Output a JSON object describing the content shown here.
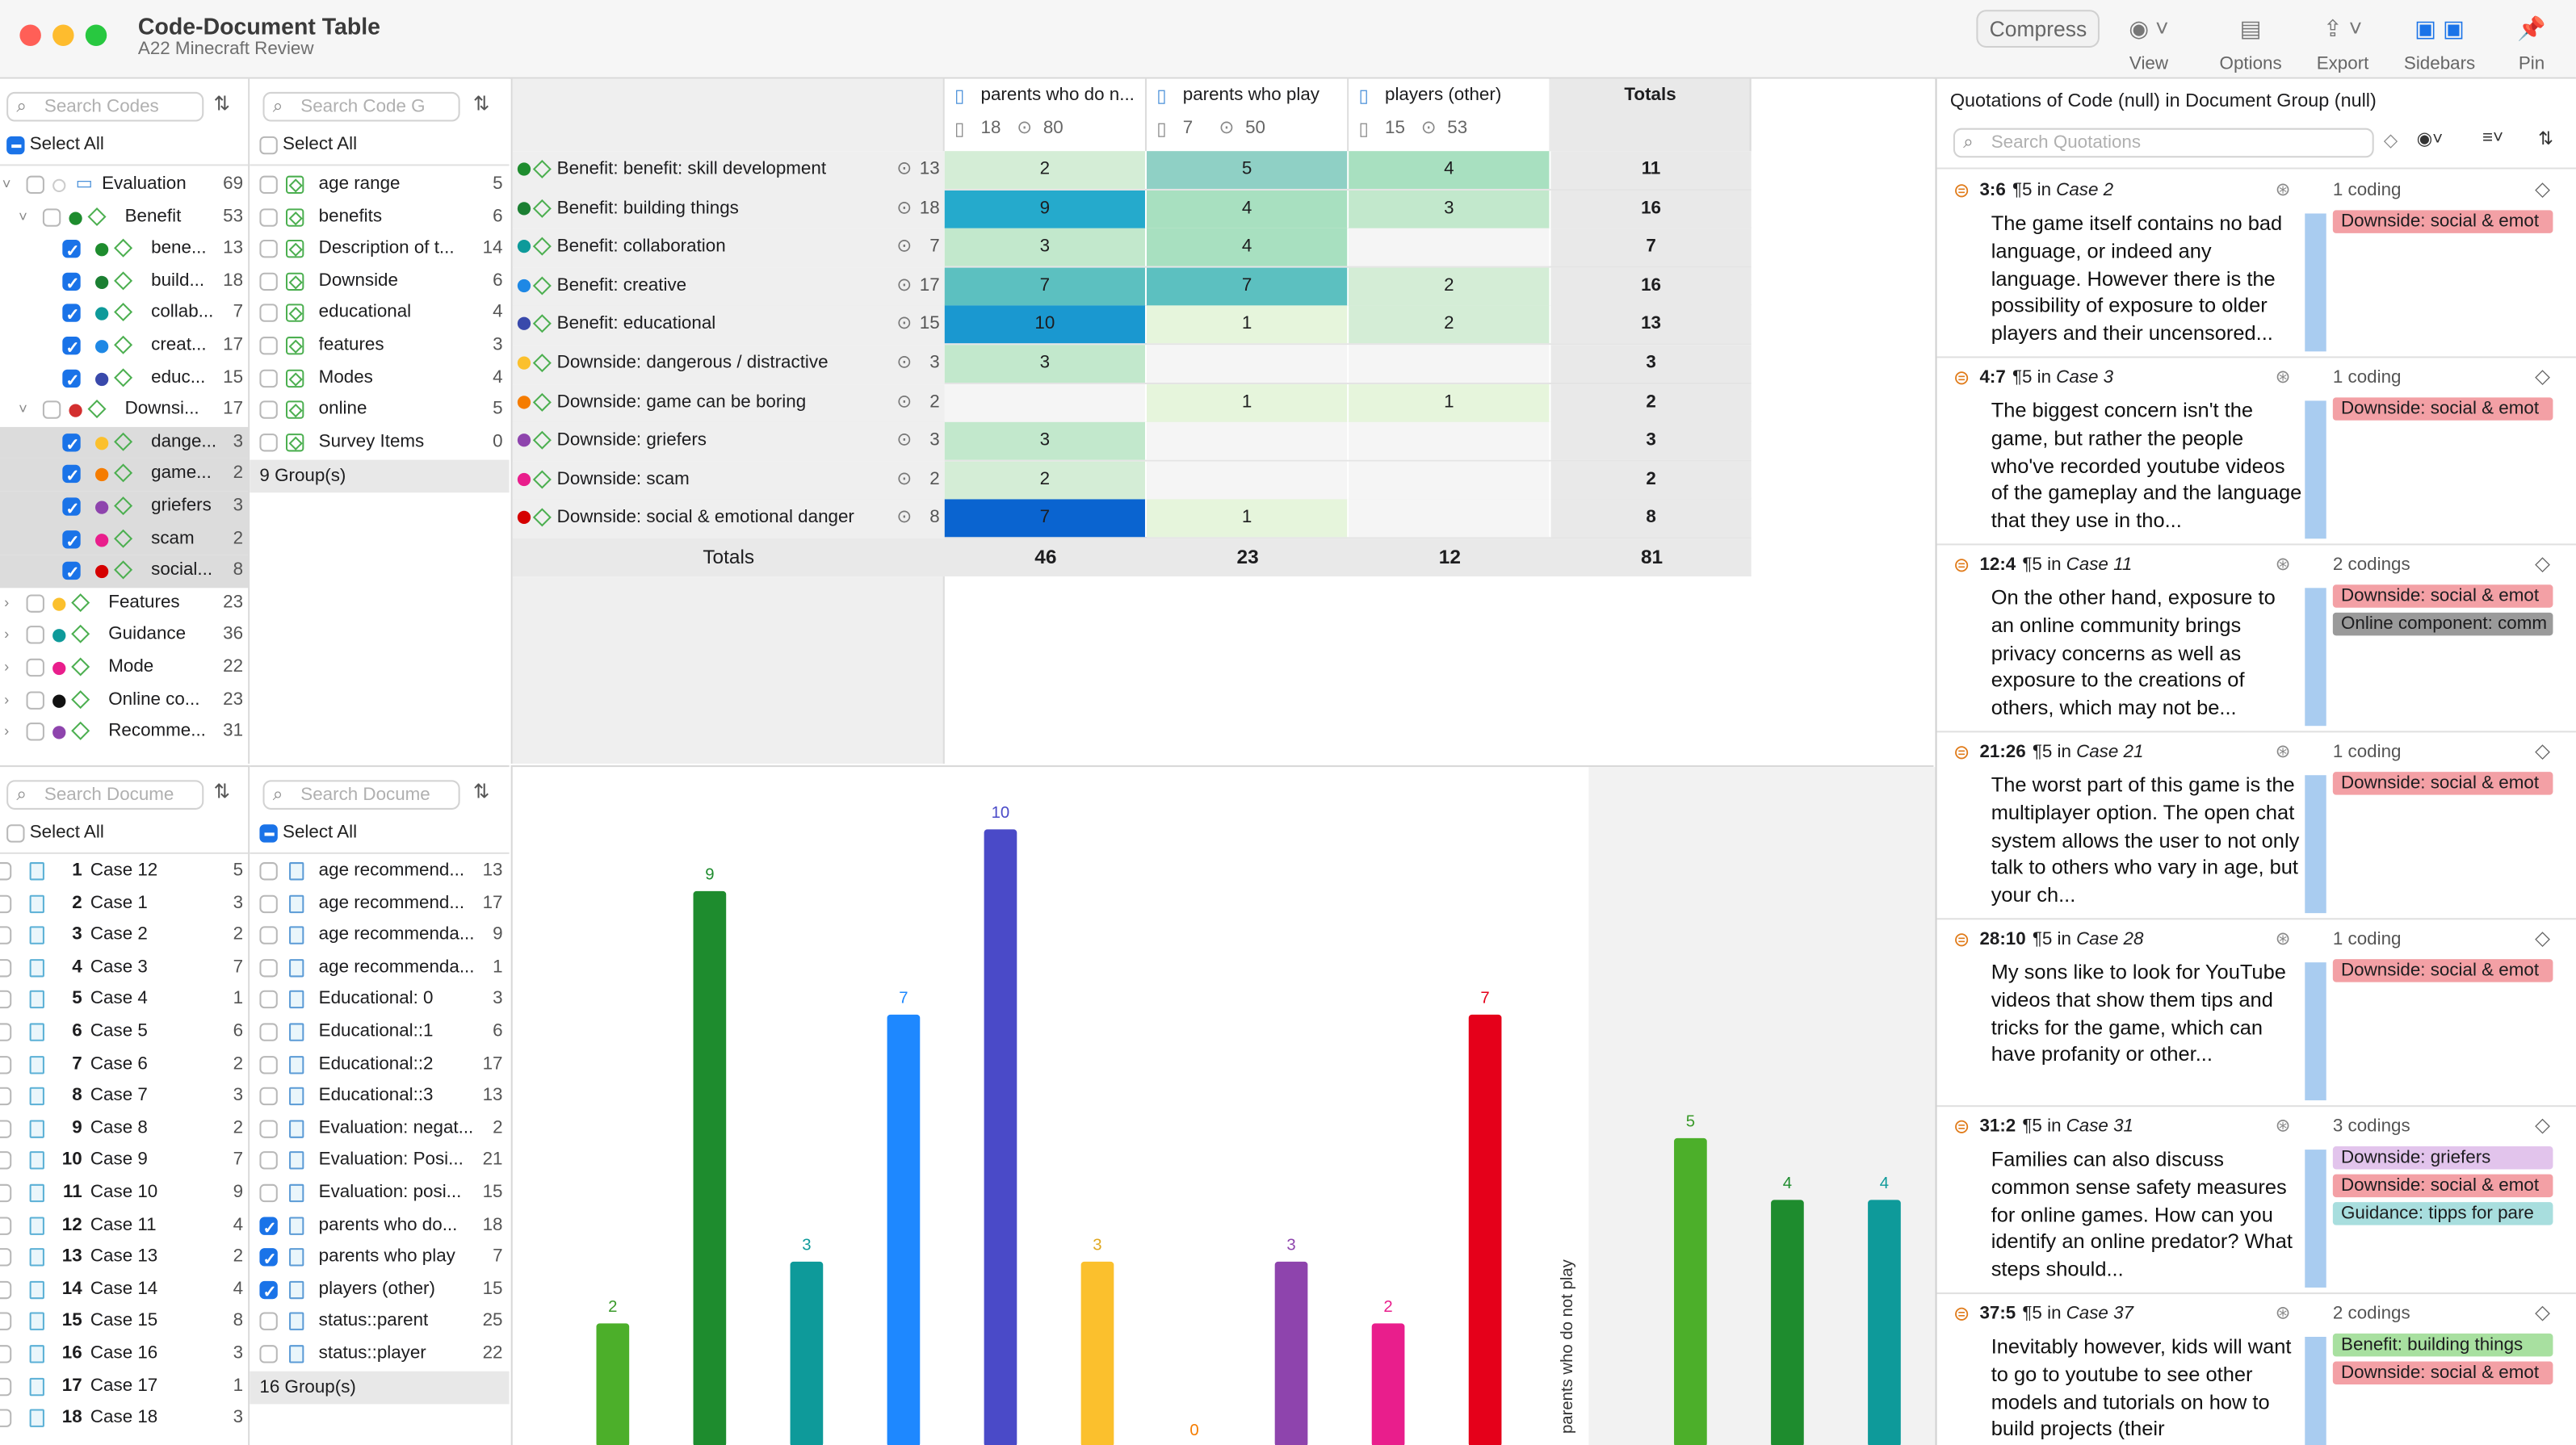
{
  "window": {
    "title": "Code-Document Table",
    "subtitle": "A22 Minecraft Review"
  },
  "toolbar": {
    "compress": "Compress",
    "items": [
      {
        "label": "View",
        "icon": "eye-icon"
      },
      {
        "label": "Options",
        "icon": "options-icon"
      },
      {
        "label": "Export",
        "icon": "export-icon"
      },
      {
        "label": "Sidebars",
        "icon": "sidebars-icon"
      },
      {
        "label": "Pin",
        "icon": "pin-icon"
      }
    ]
  },
  "codes_pane": {
    "search_placeholder": "Search Codes",
    "select_all": "Select All",
    "rows": [
      {
        "label": "Evaluation",
        "count": "69",
        "color": "",
        "kind": "folder"
      },
      {
        "label": "Benefit",
        "count": "53",
        "color": "#1e8c2e",
        "kind": "group"
      },
      {
        "label": "bene...",
        "count": "13",
        "color": "#1e8c2e",
        "kind": "code",
        "checked": true
      },
      {
        "label": "build...",
        "count": "18",
        "color": "#1b7f32",
        "kind": "code",
        "checked": true
      },
      {
        "label": "collab...",
        "count": "7",
        "color": "#0e9a9a",
        "kind": "code",
        "checked": true
      },
      {
        "label": "creat...",
        "count": "17",
        "color": "#1e88e5",
        "kind": "code",
        "checked": true
      },
      {
        "label": "educ...",
        "count": "15",
        "color": "#3949ab",
        "kind": "code",
        "checked": true
      },
      {
        "label": "Downsi...",
        "count": "17",
        "color": "#d32f2f",
        "kind": "group"
      },
      {
        "label": "dange...",
        "count": "3",
        "color": "#fbc02d",
        "kind": "code",
        "checked": true
      },
      {
        "label": "game...",
        "count": "2",
        "color": "#f57c00",
        "kind": "code",
        "checked": true
      },
      {
        "label": "griefers",
        "count": "3",
        "color": "#8e44ad",
        "kind": "code",
        "checked": true
      },
      {
        "label": "scam",
        "count": "2",
        "color": "#e91e8c",
        "kind": "code",
        "checked": true
      },
      {
        "label": "social...",
        "count": "8",
        "color": "#d50000",
        "kind": "code",
        "checked": true
      },
      {
        "label": "Features",
        "count": "23",
        "color": "#fbc02d",
        "kind": "top"
      },
      {
        "label": "Guidance",
        "count": "36",
        "color": "#0e9a9a",
        "kind": "top"
      },
      {
        "label": "Mode",
        "count": "22",
        "color": "#e91e8c",
        "kind": "top"
      },
      {
        "label": "Online co...",
        "count": "23",
        "color": "#111111",
        "kind": "top"
      },
      {
        "label": "Recomme...",
        "count": "31",
        "color": "#8e44ad",
        "kind": "top"
      }
    ]
  },
  "code_groups_pane": {
    "search_placeholder": "Search Code G",
    "select_all": "Select All",
    "rows": [
      {
        "label": "age range",
        "count": "5"
      },
      {
        "label": "benefits",
        "count": "6"
      },
      {
        "label": "Description of t...",
        "count": "14"
      },
      {
        "label": "Downside",
        "count": "6"
      },
      {
        "label": "educational",
        "count": "4"
      },
      {
        "label": "features",
        "count": "3"
      },
      {
        "label": "Modes",
        "count": "4"
      },
      {
        "label": "online",
        "count": "5"
      },
      {
        "label": "Survey Items",
        "count": "0"
      }
    ],
    "footer": "9 Group(s)"
  },
  "docs_pane": {
    "search_placeholder": "Search Docume",
    "select_all": "Select All",
    "rows": [
      {
        "num": "1",
        "label": "Case 12",
        "count": "5"
      },
      {
        "num": "2",
        "label": "Case 1",
        "count": "3"
      },
      {
        "num": "3",
        "label": "Case 2",
        "count": "2"
      },
      {
        "num": "4",
        "label": "Case 3",
        "count": "7"
      },
      {
        "num": "5",
        "label": "Case 4",
        "count": "1"
      },
      {
        "num": "6",
        "label": "Case 5",
        "count": "6"
      },
      {
        "num": "7",
        "label": "Case 6",
        "count": "2"
      },
      {
        "num": "8",
        "label": "Case 7",
        "count": "3"
      },
      {
        "num": "9",
        "label": "Case 8",
        "count": "2"
      },
      {
        "num": "10",
        "label": "Case 9",
        "count": "7"
      },
      {
        "num": "11",
        "label": "Case 10",
        "count": "9"
      },
      {
        "num": "12",
        "label": "Case 11",
        "count": "4"
      },
      {
        "num": "13",
        "label": "Case 13",
        "count": "2"
      },
      {
        "num": "14",
        "label": "Case 14",
        "count": "4"
      },
      {
        "num": "15",
        "label": "Case 15",
        "count": "8"
      },
      {
        "num": "16",
        "label": "Case 16",
        "count": "3"
      },
      {
        "num": "17",
        "label": "Case 17",
        "count": "1"
      },
      {
        "num": "18",
        "label": "Case 18",
        "count": "3"
      }
    ]
  },
  "doc_groups_pane": {
    "search_placeholder": "Search Docume",
    "select_all": "Select All",
    "rows": [
      {
        "label": "age recommend...",
        "count": "13",
        "checked": false
      },
      {
        "label": "age recommend...",
        "count": "17",
        "checked": false
      },
      {
        "label": "age recommenda...",
        "count": "9",
        "checked": false
      },
      {
        "label": "age recommenda...",
        "count": "1",
        "checked": false
      },
      {
        "label": "Educational: 0",
        "count": "3",
        "checked": false
      },
      {
        "label": "Educational::1",
        "count": "6",
        "checked": false
      },
      {
        "label": "Educational::2",
        "count": "17",
        "checked": false
      },
      {
        "label": "Educational::3",
        "count": "13",
        "checked": false
      },
      {
        "label": "Evaluation: negat...",
        "count": "2",
        "checked": false
      },
      {
        "label": "Evaluation: Posi...",
        "count": "21",
        "checked": false
      },
      {
        "label": "Evaluation: posi...",
        "count": "15",
        "checked": false
      },
      {
        "label": "parents who do...",
        "count": "18",
        "checked": true
      },
      {
        "label": "parents who play",
        "count": "7",
        "checked": true
      },
      {
        "label": "players (other)",
        "count": "15",
        "checked": true
      },
      {
        "label": "status::parent",
        "count": "25",
        "checked": false
      },
      {
        "label": "status::player",
        "count": "22",
        "checked": false
      }
    ],
    "footer": "16 Group(s)"
  },
  "table": {
    "columns": [
      {
        "name": "parents who do n...",
        "docs": "18",
        "quotes": "80"
      },
      {
        "name": "parents who play",
        "docs": "7",
        "quotes": "50"
      },
      {
        "name": "players (other)",
        "docs": "15",
        "quotes": "53"
      }
    ],
    "totals_header": "Totals",
    "totals_label": "Totals",
    "rows": [
      {
        "label": "Benefit: benefit: skill development",
        "count": "13",
        "color": "#1e8c2e",
        "values": [
          "2",
          "5",
          "4"
        ],
        "bg": [
          "#d4edd6",
          "#8fd0c5",
          "#a8e0c0"
        ],
        "total": "11"
      },
      {
        "label": "Benefit: building things",
        "count": "18",
        "color": "#1b7f32",
        "values": [
          "9",
          "4",
          "3"
        ],
        "bg": [
          "#25aacc",
          "#a8e0c0",
          "#c2e8cc"
        ],
        "total": "16"
      },
      {
        "label": "Benefit: collaboration",
        "count": "7",
        "color": "#0e9a9a",
        "values": [
          "3",
          "4",
          ""
        ],
        "bg": [
          "#c2e8cc",
          "#a8e0c0",
          "#f5f5f5"
        ],
        "total": "7"
      },
      {
        "label": "Benefit: creative",
        "count": "17",
        "color": "#1e88e5",
        "values": [
          "7",
          "7",
          "2"
        ],
        "bg": [
          "#5cc0c0",
          "#5cc0c0",
          "#d4edd6"
        ],
        "total": "16"
      },
      {
        "label": "Benefit: educational",
        "count": "15",
        "color": "#3949ab",
        "values": [
          "10",
          "1",
          "2"
        ],
        "bg": [
          "#1a98d0",
          "#e6f5dc",
          "#d4edd6"
        ],
        "total": "13"
      },
      {
        "label": "Downside: dangerous / distractive",
        "count": "3",
        "color": "#fbc02d",
        "values": [
          "3",
          "",
          ""
        ],
        "bg": [
          "#c2e8cc",
          "#f5f5f5",
          "#f5f5f5"
        ],
        "total": "3"
      },
      {
        "label": "Downside: game can be boring",
        "count": "2",
        "color": "#f57c00",
        "values": [
          "",
          "1",
          "1"
        ],
        "bg": [
          "#f5f5f5",
          "#e6f5dc",
          "#e6f5dc"
        ],
        "total": "2"
      },
      {
        "label": "Downside: griefers",
        "count": "3",
        "color": "#8e44ad",
        "values": [
          "3",
          "",
          ""
        ],
        "bg": [
          "#c2e8cc",
          "#f5f5f5",
          "#f5f5f5"
        ],
        "total": "3"
      },
      {
        "label": "Downside: scam",
        "count": "2",
        "color": "#e91e8c",
        "values": [
          "2",
          "",
          ""
        ],
        "bg": [
          "#d4edd6",
          "#f5f5f5",
          "#f5f5f5"
        ],
        "total": "2"
      },
      {
        "label": "Downside: social & emotional danger",
        "count": "8",
        "color": "#d50000",
        "values": [
          "7",
          "1",
          ""
        ],
        "bg": [
          "#0a64d0",
          "#e6f5dc",
          "#f5f5f5"
        ],
        "total": "8"
      }
    ],
    "column_totals": [
      "46",
      "23",
      "12",
      "81"
    ]
  },
  "chart_data": {
    "type": "bar",
    "ylim": [
      0,
      10
    ],
    "series_group_label": "parents who do not play",
    "groups": [
      {
        "name": "parents who do not play",
        "values": [
          2,
          9,
          3,
          7,
          10,
          3,
          0,
          3,
          2,
          7
        ],
        "colors": [
          "#4caf2a",
          "#1e8c2e",
          "#0e9a9a",
          "#1e88ff",
          "#4a4ac8",
          "#fbc02d",
          "#f57c00",
          "#8e44ad",
          "#e91e8c",
          "#e5001a"
        ],
        "labelcolors": [
          "#3a9a2a",
          "#1e8c2e",
          "#0e9a9a",
          "#1e88ff",
          "#4a4ac8",
          "#e0a820",
          "#f57c00",
          "#8e44ad",
          "#e91e8c",
          "#e5001a"
        ]
      },
      {
        "name": "parents who play",
        "values": [
          5,
          4,
          4
        ],
        "colors": [
          "#4caf2a",
          "#1e8c2e",
          "#0e9a9a"
        ],
        "labelcolors": [
          "#3a9a2a",
          "#1e8c2e",
          "#0e9a9a"
        ]
      }
    ]
  },
  "quotations": {
    "header": "Quotations of Code (null) in Document Group (null)",
    "search_placeholder": "Search Quotations",
    "items": [
      {
        "id": "3:6",
        "para": "¶5 in",
        "case": "Case 2",
        "codings": "1 coding",
        "text": "The game itself contains no bad language, or indeed any language. However there is the possibility of exposure to older players and their uncensored...",
        "tags": [
          {
            "label": "Downside: social & emot",
            "bg": "#f3a0a5"
          }
        ]
      },
      {
        "id": "4:7",
        "para": "¶5 in",
        "case": "Case 3",
        "codings": "1 coding",
        "text": "The biggest concern isn't the game, but rather the people who've recorded youtube videos of the gameplay and the language that they use in tho...",
        "tags": [
          {
            "label": "Downside: social & emot",
            "bg": "#f3a0a5"
          }
        ]
      },
      {
        "id": "12:4",
        "para": "¶5 in",
        "case": "Case 11",
        "codings": "2 codings",
        "text": "On the other hand, exposure to an online community brings privacy concerns as well as exposure to the creations of others, which may not be...",
        "tags": [
          {
            "label": "Downside: social & emot",
            "bg": "#f3a0a5"
          },
          {
            "label": "Online component: comm",
            "bg": "#9a9a9a"
          }
        ]
      },
      {
        "id": "21:26",
        "para": "¶5 in",
        "case": "Case 21",
        "codings": "1 coding",
        "text": "The worst part of this game is the multiplayer option. The open chat system allows the user to not only talk to others who vary in age, but your ch...",
        "tags": [
          {
            "label": "Downside: social & emot",
            "bg": "#f3a0a5"
          }
        ]
      },
      {
        "id": "28:10",
        "para": "¶5 in",
        "case": "Case 28",
        "codings": "1 coding",
        "text": "My sons like to look for YouTube videos that show them tips and tricks for the game, which can have profanity or other...",
        "tags": [
          {
            "label": "Downside: social & emot",
            "bg": "#f3a0a5"
          }
        ]
      },
      {
        "id": "31:2",
        "para": "¶5 in",
        "case": "Case 31",
        "codings": "3 codings",
        "text": "Families can also discuss common sense safety measures for online games. How can you identify an online predator? What steps should...",
        "tags": [
          {
            "label": "Downside: griefers",
            "bg": "#e2c4ec"
          },
          {
            "label": "Downside: social & emot",
            "bg": "#f3a0a5"
          },
          {
            "label": "Guidance: tipps for pare",
            "bg": "#a8dede"
          }
        ]
      },
      {
        "id": "37:5",
        "para": "¶5 in",
        "case": "Case 37",
        "codings": "2 codings",
        "text": "Inevitably however, kids will want to go to youtube to see other models and tutorials on how to build projects (their",
        "tags": [
          {
            "label": "Benefit: building things",
            "bg": "#a8e0a0"
          },
          {
            "label": "Downside: social & emot",
            "bg": "#f3a0a5"
          }
        ]
      }
    ]
  }
}
